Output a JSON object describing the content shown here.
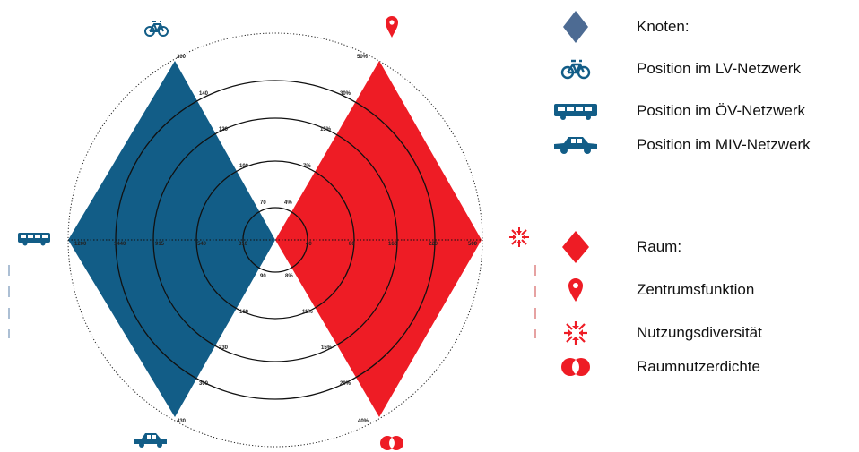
{
  "colors": {
    "node": "#125d87",
    "space": "#ee1c25",
    "legend_node": "#4d6b93"
  },
  "legend": {
    "node_title": "Knoten:",
    "node_items": [
      {
        "icon": "bicycle-icon",
        "label": "Position im LV-Netzwerk"
      },
      {
        "icon": "bus-icon",
        "label": "Position im ÖV-Netzwerk"
      },
      {
        "icon": "car-icon",
        "label": "Position im MIV-Netzwerk"
      }
    ],
    "space_title": "Raum:",
    "space_items": [
      {
        "icon": "location-pin-icon",
        "label": "Zentrumsfunktion"
      },
      {
        "icon": "arrows-converging-icon",
        "label": "Nutzungsdiversität"
      },
      {
        "icon": "overlapping-circles-icon",
        "label": "Raumnutzerdichte"
      }
    ]
  },
  "node_diamond": {
    "top_ticks": [
      "140",
      "120",
      "100",
      "70"
    ],
    "top_end": "200",
    "left_ticks": [
      "1440",
      "915",
      "540",
      "310"
    ],
    "left_end": "1200",
    "bottom_ticks": [
      "90",
      "160",
      "230",
      "300"
    ],
    "bottom_end": "430"
  },
  "space_diamond": {
    "top_ticks": [
      "4%",
      "7%",
      "15%",
      "30%"
    ],
    "top_end": "50%",
    "right_ticks": [
      "40",
      "80",
      "160",
      "220"
    ],
    "right_end": "500",
    "bottom_ticks": [
      "8%",
      "11%",
      "15%",
      "20%"
    ],
    "bottom_end": "40%"
  }
}
